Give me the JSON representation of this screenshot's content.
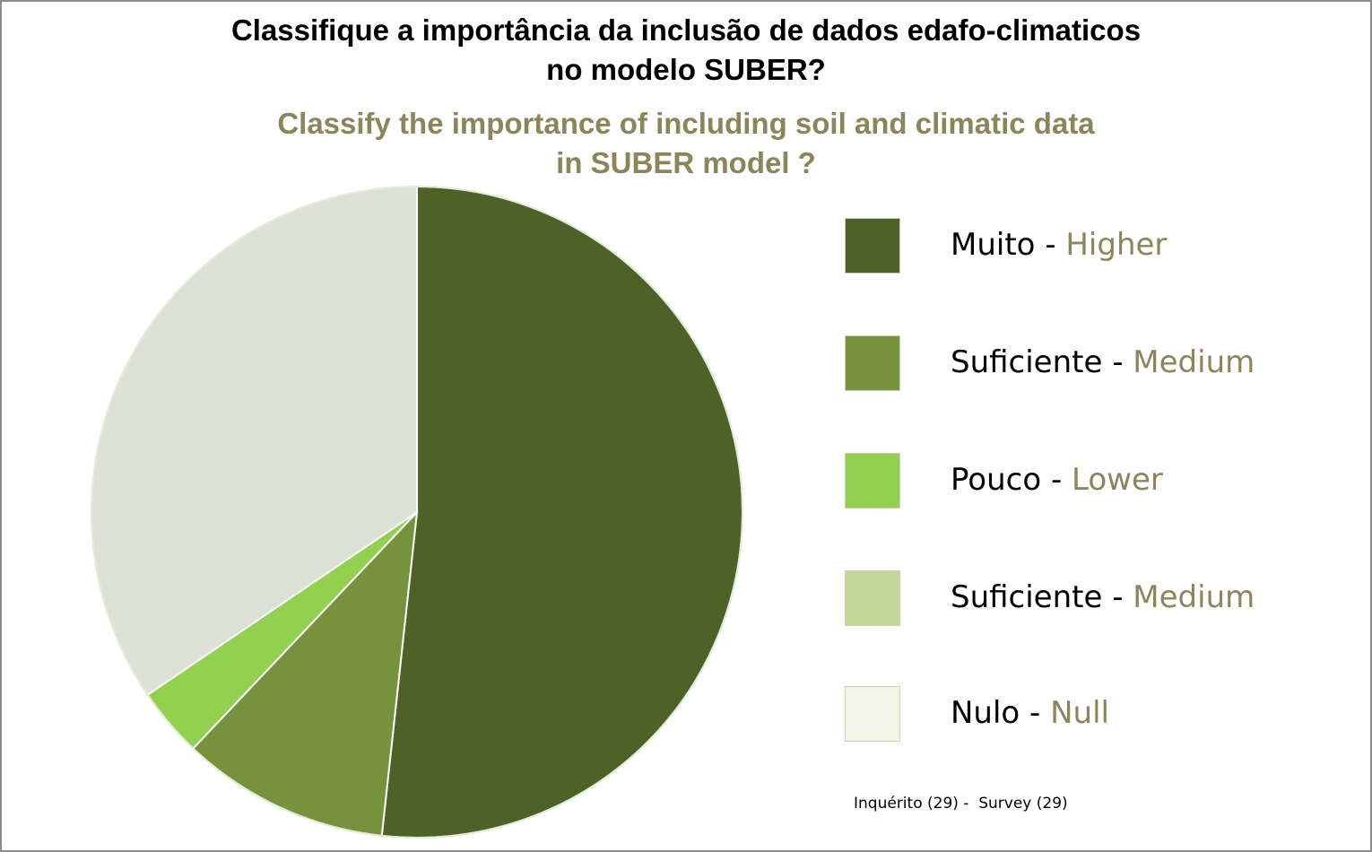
{
  "title": {
    "pt_line1": "Classifique a importância da inclusão de dados edafo-climaticos",
    "pt_line2": "no modelo SUBER?",
    "en_line1": "Classify the importance of including soil and climatic data",
    "en_line2": "in SUBER model ?"
  },
  "legend": [
    {
      "pt": "Muito",
      "sep": " - ",
      "en": "Higher",
      "color": "#4e6228"
    },
    {
      "pt": "Suficiente",
      "sep": " - ",
      "en": "Medium",
      "color": "#76923c"
    },
    {
      "pt": "Pouco",
      "sep": " - ",
      "en": "Lower",
      "color": "#92d050"
    },
    {
      "pt": "Suficiente",
      "sep": " - ",
      "en": "Medium",
      "color": "#c4d79b"
    },
    {
      "pt": "Nulo",
      "sep": " - ",
      "en": "Null",
      "color": "#f2f5e8"
    }
  ],
  "source": "Inquérito (29) -  Survey (29)",
  "colors": {
    "title_en": "#8b8559",
    "title_pt": "#000000",
    "border": "#8c8c8c",
    "pie_other": "#dde0d5"
  },
  "chart_data": {
    "type": "pie",
    "title": "Classifique a importância da inclusão de dados edafo-climaticos no modelo SUBER? / Classify the importance of including soil and climatic data in SUBER model ?",
    "categories": [
      "Muito - Higher",
      "Suficiente - Medium",
      "Pouco - Lower",
      "Suficiente - Medium",
      "Nulo - Null"
    ],
    "values": [
      15,
      3,
      1,
      0,
      10
    ],
    "colors": [
      "#4e6228",
      "#76923c",
      "#92d050",
      "#c4d79b",
      "#dde0d5"
    ],
    "total": 29,
    "start_angle_deg": 0,
    "direction": "clockwise",
    "legend_position": "right"
  }
}
